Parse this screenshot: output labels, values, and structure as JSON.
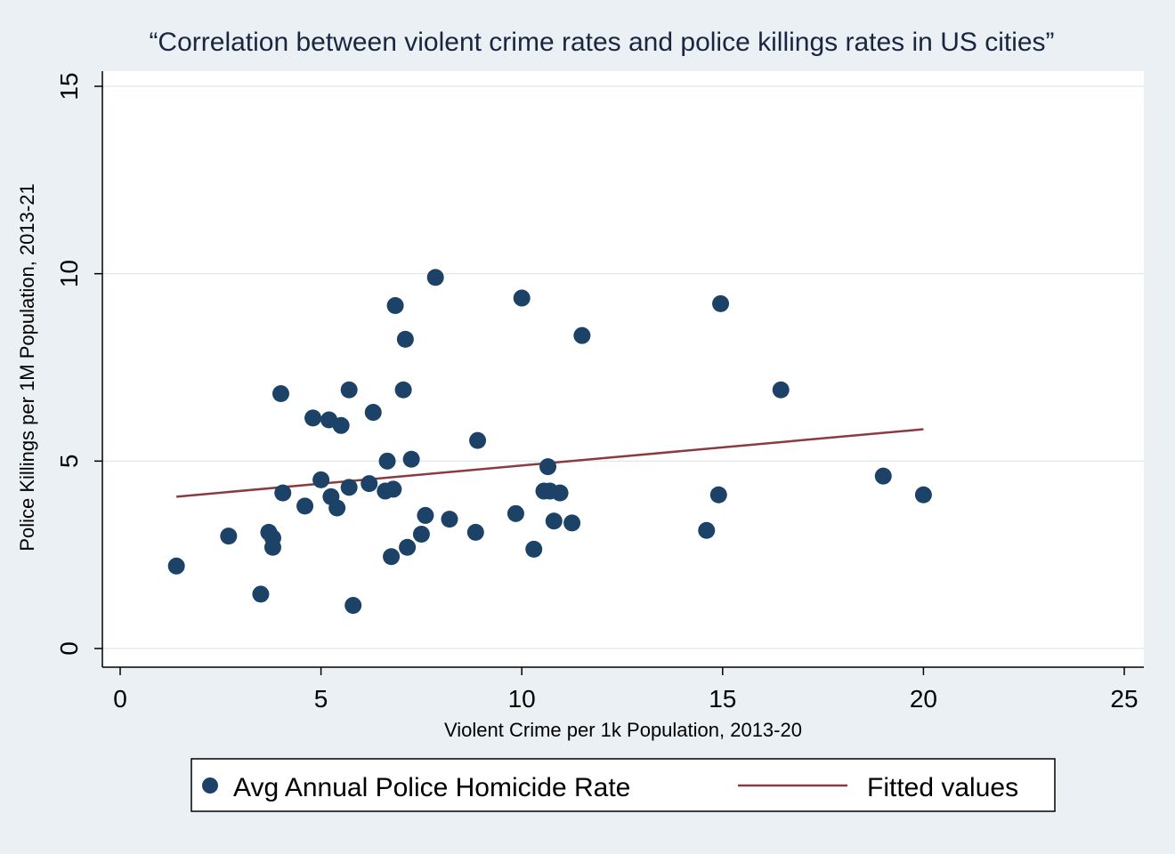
{
  "chart_data": {
    "type": "scatter",
    "title": "“Correlation between violent crime rates and police killings rates in US cities”",
    "xlabel": "Violent Crime per 1k Population, 2013-20",
    "ylabel": "Police Killings per 1M Population, 2013-21",
    "xlim": [
      0,
      25
    ],
    "ylim": [
      0,
      15
    ],
    "x_ticks": [
      "0",
      "5",
      "10",
      "15",
      "20",
      "25"
    ],
    "y_ticks": [
      "0",
      "5",
      "10",
      "15"
    ],
    "grid": "horizontal",
    "legend_position": "bottom",
    "colors": {
      "points": "#1d4268",
      "fit": "#8b3a3e",
      "background": "#eaf0f4",
      "plot_background": "#ffffff",
      "grid": "#e3eaee"
    },
    "series": [
      {
        "name": "Avg Annual Police Homicide Rate",
        "kind": "scatter",
        "points": [
          [
            1.4,
            2.2
          ],
          [
            2.7,
            3.0
          ],
          [
            3.5,
            1.45
          ],
          [
            3.7,
            3.1
          ],
          [
            3.8,
            2.95
          ],
          [
            3.8,
            2.7
          ],
          [
            4.0,
            6.8
          ],
          [
            4.05,
            4.15
          ],
          [
            4.6,
            3.8
          ],
          [
            4.8,
            6.15
          ],
          [
            5.0,
            4.5
          ],
          [
            5.2,
            6.1
          ],
          [
            5.25,
            4.05
          ],
          [
            5.4,
            3.75
          ],
          [
            5.5,
            5.95
          ],
          [
            5.7,
            6.9
          ],
          [
            5.7,
            4.3
          ],
          [
            5.8,
            1.15
          ],
          [
            6.2,
            4.4
          ],
          [
            6.3,
            6.3
          ],
          [
            6.6,
            4.2
          ],
          [
            6.65,
            5.0
          ],
          [
            6.75,
            2.45
          ],
          [
            6.8,
            4.25
          ],
          [
            6.85,
            9.15
          ],
          [
            7.05,
            6.9
          ],
          [
            7.1,
            8.25
          ],
          [
            7.15,
            2.7
          ],
          [
            7.25,
            5.05
          ],
          [
            7.5,
            3.05
          ],
          [
            7.6,
            3.55
          ],
          [
            7.85,
            9.9
          ],
          [
            8.2,
            3.45
          ],
          [
            8.85,
            3.1
          ],
          [
            8.9,
            5.55
          ],
          [
            9.85,
            3.6
          ],
          [
            10.0,
            9.35
          ],
          [
            10.3,
            2.65
          ],
          [
            10.55,
            4.2
          ],
          [
            10.65,
            4.85
          ],
          [
            10.7,
            4.2
          ],
          [
            10.8,
            3.4
          ],
          [
            10.95,
            4.15
          ],
          [
            11.25,
            3.35
          ],
          [
            11.5,
            8.35
          ],
          [
            14.6,
            3.15
          ],
          [
            14.9,
            4.1
          ],
          [
            14.95,
            9.2
          ],
          [
            16.45,
            6.9
          ],
          [
            19.0,
            4.6
          ],
          [
            20.0,
            4.1
          ]
        ]
      },
      {
        "name": "Fitted values",
        "kind": "line",
        "points": [
          [
            1.4,
            4.05
          ],
          [
            20.0,
            5.85
          ]
        ]
      }
    ]
  }
}
